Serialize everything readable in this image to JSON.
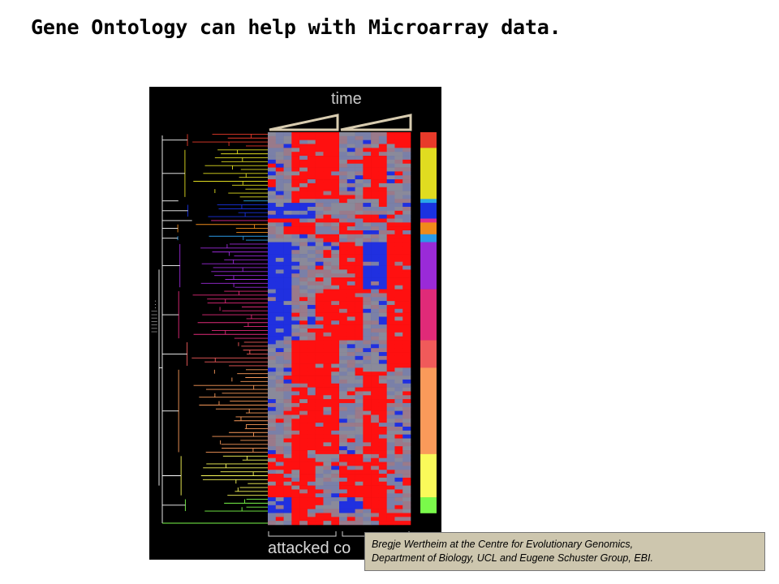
{
  "slide": {
    "title": "Gene Ontology can help with Microarray data."
  },
  "figure": {
    "top_label": "time",
    "bottom_label": "attacked co",
    "tiny_label": "|||||||...",
    "row_count": 100,
    "col_count": 18,
    "cluster_colors": [
      {
        "name": "red",
        "color": "#e83a2a",
        "rows": 4
      },
      {
        "name": "yellow",
        "color": "#e0dc20",
        "rows": 13
      },
      {
        "name": "sky",
        "color": "#2aa8e8",
        "rows": 1
      },
      {
        "name": "blue",
        "color": "#1a32e0",
        "rows": 4
      },
      {
        "name": "magenta",
        "color": "#e02a90",
        "rows": 1
      },
      {
        "name": "orange",
        "color": "#f08a1a",
        "rows": 3
      },
      {
        "name": "azure",
        "color": "#2a9ae8",
        "rows": 2
      },
      {
        "name": "purple",
        "color": "#9a2ad8",
        "rows": 12
      },
      {
        "name": "pink",
        "color": "#e02a78",
        "rows": 13
      },
      {
        "name": "salmon",
        "color": "#f05a5a",
        "rows": 7
      },
      {
        "name": "peach",
        "color": "#fa9a5a",
        "rows": 22
      },
      {
        "name": "light-yellow",
        "color": "#fafa5a",
        "rows": 11
      },
      {
        "name": "lime",
        "color": "#7afa4a",
        "rows": 4
      }
    ],
    "heatmap_colors": {
      "up": "#ff1010",
      "down": "#2030e0",
      "neutral": "#8a8a9a"
    }
  },
  "credit": {
    "line1": "Bregje Wertheim at the Centre for Evolutionary Genomics,",
    "line2": "Department of Biology, UCL and Eugene Schuster Group, EBI."
  }
}
